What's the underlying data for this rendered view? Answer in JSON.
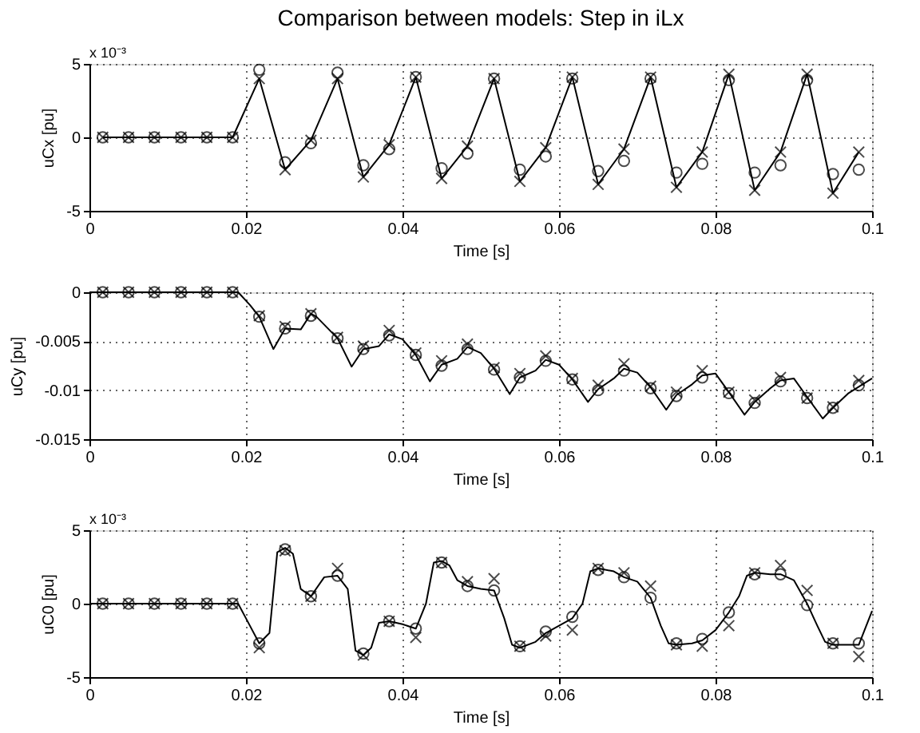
{
  "chart_data": [
    {
      "type": "line",
      "title": "Comparison between models: Step in iLx",
      "xlabel": "Time [s]",
      "ylabel": "uCx [pu]",
      "annotations": [
        "x 10⁻³"
      ],
      "xlim": [
        0,
        0.1
      ],
      "xticks": [
        0,
        0.02,
        0.04,
        0.06,
        0.08,
        0.1
      ],
      "ylim": [
        -5,
        5
      ],
      "yticks": [
        -5,
        0,
        5
      ],
      "grid": true,
      "line_style": "solid",
      "x": [
        0.0017,
        0.005,
        0.0083,
        0.0117,
        0.015,
        0.0183,
        0.0217,
        0.025,
        0.0283,
        0.0317,
        0.035,
        0.0383,
        0.0417,
        0.045,
        0.0483,
        0.0517,
        0.055,
        0.0583,
        0.0617,
        0.065,
        0.0683,
        0.0717,
        0.075,
        0.0783,
        0.0817,
        0.085,
        0.0883,
        0.0917,
        0.095,
        0.0983
      ],
      "series": [
        {
          "marker": "none",
          "color": "#000000",
          "values": [
            0,
            0,
            0,
            0,
            0,
            0,
            4.0,
            -2.2,
            -0.2,
            4.0,
            -2.7,
            -0.5,
            4.1,
            -2.8,
            -0.6,
            4.0,
            -3.0,
            -0.7,
            4.1,
            -3.2,
            -0.8,
            4.1,
            -3.4,
            -1.0,
            4.3,
            -3.6,
            -1.0,
            4.3,
            -3.8,
            -1.0
          ]
        },
        {
          "type": "scatter",
          "marker": "circle",
          "color": "#000000",
          "values": [
            0,
            0,
            0,
            0,
            0,
            0,
            4.6,
            -1.7,
            -0.4,
            4.4,
            -1.9,
            -0.8,
            4.1,
            -2.1,
            -1.1,
            4.0,
            -2.2,
            -1.3,
            4.0,
            -2.3,
            -1.6,
            4.0,
            -2.4,
            -1.8,
            3.9,
            -2.4,
            -1.9,
            3.9,
            -2.5,
            -2.2
          ]
        },
        {
          "type": "scatter",
          "marker": "cross",
          "color": "#000000",
          "values": [
            0,
            0,
            0,
            0,
            0,
            0,
            4.0,
            -2.2,
            -0.2,
            4.0,
            -2.7,
            -0.5,
            4.1,
            -2.8,
            -0.6,
            4.0,
            -3.0,
            -0.7,
            4.1,
            -3.2,
            -0.8,
            4.1,
            -3.4,
            -1.0,
            4.3,
            -3.6,
            -1.0,
            4.3,
            -3.8,
            -1.0
          ]
        }
      ]
    },
    {
      "type": "line",
      "xlabel": "Time [s]",
      "ylabel": "uCy [pu]",
      "xlim": [
        0,
        0.1
      ],
      "xticks": [
        0,
        0.02,
        0.04,
        0.06,
        0.08,
        0.1
      ],
      "ylim": [
        -0.015,
        0
      ],
      "yticks": [
        -0.015,
        -0.01,
        -0.005,
        0
      ],
      "grid": true,
      "line_style": "solid",
      "x": [
        0.0017,
        0.005,
        0.0083,
        0.0117,
        0.015,
        0.0183,
        0.0217,
        0.025,
        0.0283,
        0.0317,
        0.035,
        0.0383,
        0.0417,
        0.045,
        0.0483,
        0.0517,
        0.055,
        0.0583,
        0.0617,
        0.065,
        0.0683,
        0.0717,
        0.075,
        0.0783,
        0.0817,
        0.085,
        0.0883,
        0.0917,
        0.095,
        0.0983
      ],
      "series": [
        {
          "marker": "none",
          "color": "#000000",
          "x": [
            0,
            0.019,
            0.0205,
            0.0217,
            0.0235,
            0.025,
            0.027,
            0.0283,
            0.029,
            0.0317,
            0.0335,
            0.035,
            0.037,
            0.0383,
            0.04,
            0.0417,
            0.0435,
            0.045,
            0.047,
            0.0483,
            0.05,
            0.0517,
            0.0537,
            0.055,
            0.057,
            0.0583,
            0.06,
            0.0617,
            0.0637,
            0.065,
            0.067,
            0.0683,
            0.07,
            0.0717,
            0.0737,
            0.075,
            0.077,
            0.0783,
            0.08,
            0.0817,
            0.0837,
            0.085,
            0.087,
            0.0883,
            0.09,
            0.0917,
            0.0937,
            0.095,
            0.097,
            0.1
          ],
          "values": [
            0,
            0,
            -0.0013,
            -0.0025,
            -0.0058,
            -0.0037,
            -0.0038,
            -0.0022,
            -0.0025,
            -0.0047,
            -0.0076,
            -0.0058,
            -0.0055,
            -0.0043,
            -0.0048,
            -0.0064,
            -0.0091,
            -0.0074,
            -0.0068,
            -0.0056,
            -0.0062,
            -0.0078,
            -0.0104,
            -0.0087,
            -0.008,
            -0.0069,
            -0.0074,
            -0.0089,
            -0.0112,
            -0.0099,
            -0.0088,
            -0.0078,
            -0.0082,
            -0.0097,
            -0.012,
            -0.0105,
            -0.0094,
            -0.0085,
            -0.0083,
            -0.0102,
            -0.0125,
            -0.0112,
            -0.0098,
            -0.009,
            -0.0088,
            -0.0107,
            -0.0129,
            -0.0118,
            -0.0103,
            -0.0088
          ]
        },
        {
          "type": "scatter",
          "marker": "circle",
          "color": "#000000",
          "values": [
            0,
            0,
            0,
            0,
            0,
            0,
            -0.0025,
            -0.0037,
            -0.0024,
            -0.0047,
            -0.0058,
            -0.0044,
            -0.0064,
            -0.0075,
            -0.0058,
            -0.0079,
            -0.0087,
            -0.007,
            -0.0089,
            -0.01,
            -0.008,
            -0.0098,
            -0.0106,
            -0.0087,
            -0.0103,
            -0.0113,
            -0.0091,
            -0.0108,
            -0.0118,
            -0.0095
          ]
        },
        {
          "type": "scatter",
          "marker": "cross",
          "color": "#000000",
          "values": [
            0,
            0,
            0,
            0,
            0,
            0,
            -0.0024,
            -0.0035,
            -0.0022,
            -0.0046,
            -0.0055,
            -0.0039,
            -0.0062,
            -0.007,
            -0.0053,
            -0.0077,
            -0.0083,
            -0.0065,
            -0.0088,
            -0.0095,
            -0.0073,
            -0.0096,
            -0.0102,
            -0.008,
            -0.0102,
            -0.011,
            -0.0087,
            -0.0108,
            -0.0117,
            -0.009
          ]
        }
      ]
    },
    {
      "type": "line",
      "xlabel": "Time [s]",
      "ylabel": "uC0 [pu]",
      "annotations": [
        "x 10⁻³"
      ],
      "xlim": [
        0,
        0.1
      ],
      "xticks": [
        0,
        0.02,
        0.04,
        0.06,
        0.08,
        0.1
      ],
      "ylim": [
        -5,
        5
      ],
      "yticks": [
        -5,
        0,
        5
      ],
      "grid": true,
      "line_style": "solid",
      "x": [
        0.0017,
        0.005,
        0.0083,
        0.0117,
        0.015,
        0.0183,
        0.0217,
        0.025,
        0.0283,
        0.0317,
        0.035,
        0.0383,
        0.0417,
        0.045,
        0.0483,
        0.0517,
        0.055,
        0.0583,
        0.0617,
        0.065,
        0.0683,
        0.0717,
        0.075,
        0.0783,
        0.0817,
        0.085,
        0.0883,
        0.0917,
        0.095,
        0.0983
      ],
      "series": [
        {
          "marker": "none",
          "color": "#000000",
          "x": [
            0,
            0.019,
            0.02,
            0.0217,
            0.023,
            0.024,
            0.025,
            0.026,
            0.027,
            0.0283,
            0.03,
            0.0317,
            0.033,
            0.034,
            0.035,
            0.036,
            0.037,
            0.0383,
            0.04,
            0.0417,
            0.043,
            0.044,
            0.045,
            0.046,
            0.047,
            0.0483,
            0.05,
            0.0517,
            0.053,
            0.054,
            0.055,
            0.057,
            0.0583,
            0.06,
            0.0617,
            0.063,
            0.064,
            0.065,
            0.067,
            0.0683,
            0.07,
            0.0717,
            0.073,
            0.074,
            0.075,
            0.077,
            0.0783,
            0.08,
            0.0817,
            0.083,
            0.084,
            0.085,
            0.087,
            0.0883,
            0.09,
            0.0917,
            0.093,
            0.094,
            0.095,
            0.097,
            0.0983,
            0.1
          ],
          "values": [
            0,
            0,
            -1.0,
            -2.7,
            -2.0,
            3.5,
            3.8,
            3.4,
            1.0,
            0.5,
            1.8,
            1.9,
            1.0,
            -3.2,
            -3.5,
            -3.0,
            -1.3,
            -1.2,
            -1.4,
            -1.7,
            0,
            2.8,
            2.9,
            2.6,
            1.6,
            1.2,
            1.0,
            0.9,
            -1.0,
            -2.8,
            -3.0,
            -2.6,
            -2.0,
            -1.5,
            -1.0,
            0,
            2.2,
            2.4,
            2.2,
            1.8,
            1.5,
            0.4,
            -1.5,
            -2.7,
            -2.8,
            -2.7,
            -2.5,
            -1.8,
            -0.6,
            0.5,
            1.9,
            2.1,
            2.0,
            2.0,
            1.6,
            0.0,
            -1.5,
            -2.6,
            -2.8,
            -2.8,
            -2.8,
            -0.5
          ]
        },
        {
          "type": "scatter",
          "marker": "circle",
          "color": "#000000",
          "values": [
            0,
            0,
            0,
            0,
            0,
            0,
            -2.7,
            3.7,
            0.5,
            1.9,
            -3.4,
            -1.2,
            -1.7,
            2.8,
            1.2,
            0.9,
            -2.9,
            -1.9,
            -0.9,
            2.3,
            1.8,
            0.4,
            -2.7,
            -2.4,
            -0.6,
            2.0,
            2.0,
            -0.1,
            -2.7,
            -2.7
          ]
        },
        {
          "type": "scatter",
          "marker": "cross",
          "color": "#000000",
          "values": [
            0,
            0,
            0,
            0,
            0,
            0,
            -3.0,
            3.6,
            0.5,
            2.4,
            -3.5,
            -1.2,
            -2.3,
            2.8,
            1.5,
            1.7,
            -2.9,
            -2.2,
            -1.8,
            2.4,
            2.1,
            1.2,
            -2.8,
            -2.9,
            -1.5,
            2.1,
            2.6,
            0.9,
            -2.7,
            -3.6
          ]
        }
      ]
    }
  ]
}
